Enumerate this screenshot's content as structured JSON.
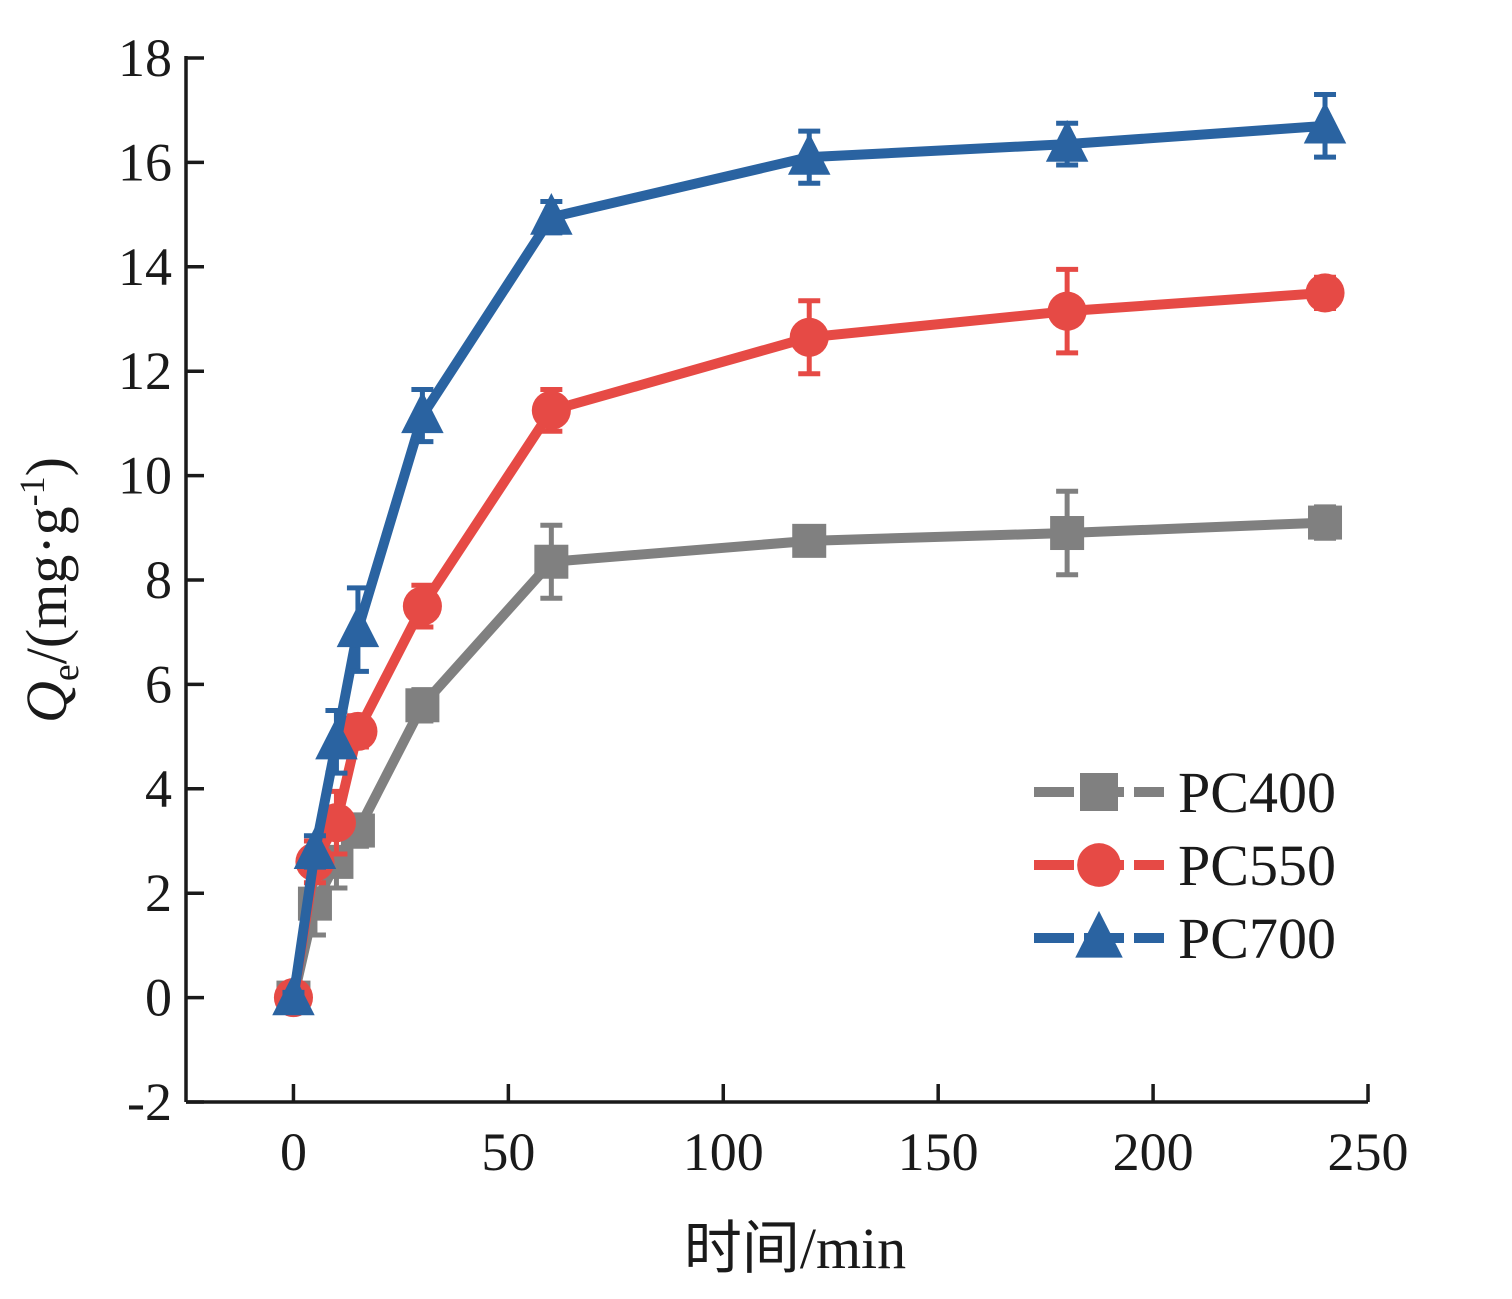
{
  "chart_data": {
    "type": "line",
    "xlabel": "时间/min",
    "ylabel": {
      "symbol": "Q",
      "subscript": "e",
      "unit_prefix": "/(mg·g",
      "superscript": "-1",
      "unit_suffix": ")"
    },
    "xlim": [
      -25,
      250
    ],
    "ylim": [
      -2,
      18
    ],
    "xticks": [
      0,
      50,
      100,
      150,
      200,
      250
    ],
    "yticks": [
      -2,
      0,
      2,
      4,
      6,
      8,
      10,
      12,
      14,
      16,
      18
    ],
    "legend_position": "lower-right",
    "x": [
      0,
      5,
      10,
      15,
      30,
      60,
      120,
      180,
      240
    ],
    "series": [
      {
        "name": "PC400",
        "color": "#808080",
        "marker": "square",
        "values": [
          0.0,
          1.8,
          2.6,
          3.2,
          5.6,
          8.35,
          8.75,
          8.9,
          9.1
        ],
        "errors": [
          0.2,
          0.6,
          0.5,
          0.3,
          0.3,
          0.7,
          0.25,
          0.8,
          0.3
        ]
      },
      {
        "name": "PC550",
        "color": "#e64a45",
        "marker": "circle",
        "values": [
          0.0,
          2.6,
          3.35,
          5.1,
          7.5,
          11.25,
          12.65,
          13.15,
          13.5
        ],
        "errors": [
          0.1,
          0.4,
          0.6,
          0.3,
          0.4,
          0.4,
          0.7,
          0.8,
          0.3
        ]
      },
      {
        "name": "PC700",
        "color": "#2a63a1",
        "marker": "triangle",
        "values": [
          0.0,
          2.8,
          4.9,
          7.05,
          11.15,
          14.95,
          16.1,
          16.35,
          16.7
        ],
        "errors": [
          0.1,
          0.3,
          0.6,
          0.8,
          0.5,
          0.3,
          0.5,
          0.4,
          0.6
        ]
      }
    ]
  }
}
